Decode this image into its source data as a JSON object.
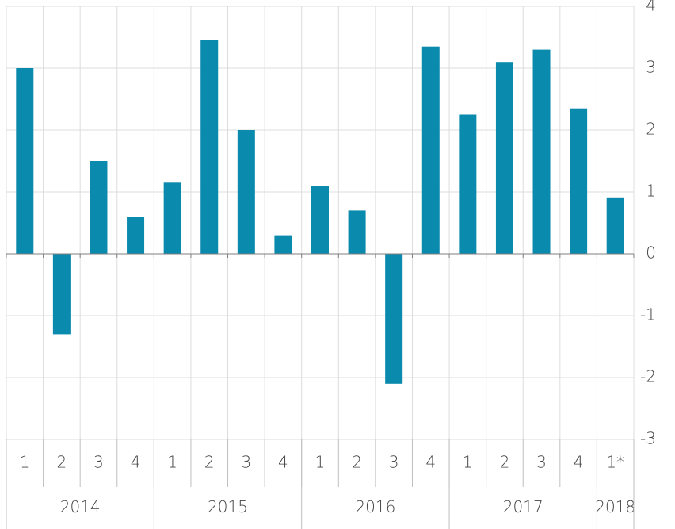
{
  "chart_data": {
    "type": "bar",
    "color": "#0a8aad",
    "groups": [
      {
        "name": "2014",
        "categories": [
          "1",
          "2",
          "3",
          "4"
        ]
      },
      {
        "name": "2015",
        "categories": [
          "1",
          "2",
          "3",
          "4"
        ]
      },
      {
        "name": "2016",
        "categories": [
          "1",
          "2",
          "3",
          "4"
        ]
      },
      {
        "name": "2017",
        "categories": [
          "1",
          "2",
          "3",
          "4"
        ]
      },
      {
        "name": "2018",
        "categories": [
          "1*"
        ]
      }
    ],
    "values": [
      3.0,
      -1.3,
      1.5,
      0.6,
      1.15,
      3.45,
      2.0,
      0.3,
      1.1,
      0.7,
      -2.1,
      3.35,
      2.25,
      3.1,
      3.3,
      2.35,
      0.9
    ],
    "ylim": [
      -3,
      4
    ],
    "yticks": [
      -3,
      -2,
      -1,
      0,
      1,
      2,
      3,
      4
    ],
    "grid": true
  }
}
